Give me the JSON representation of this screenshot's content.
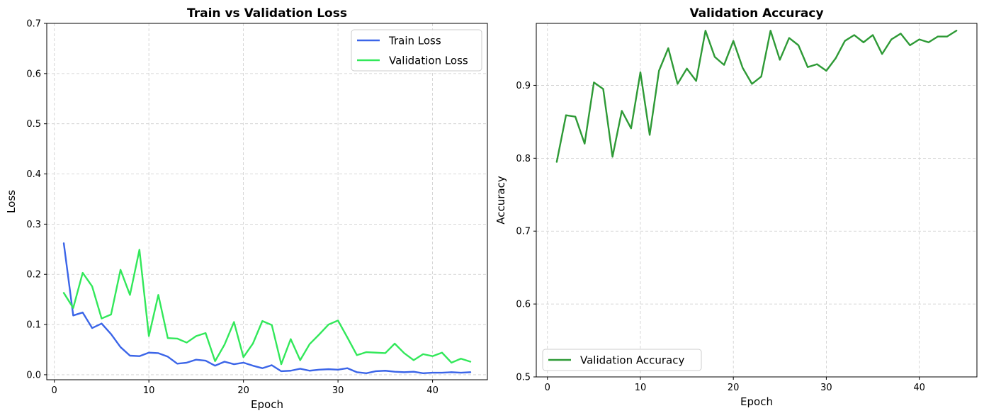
{
  "chart_data": [
    {
      "type": "line",
      "title": "Train vs Validation Loss",
      "xlabel": "Epoch",
      "ylabel": "Loss",
      "xlim": [
        -0.8,
        45.8
      ],
      "ylim": [
        -0.01,
        0.7
      ],
      "xticks": [
        0,
        10,
        20,
        30,
        40
      ],
      "yticks": [
        0.0,
        0.1,
        0.2,
        0.3,
        0.4,
        0.5,
        0.6,
        0.7
      ],
      "ytick_decimals": 1,
      "grid": true,
      "legend": "top-right",
      "x": [
        1,
        2,
        3,
        4,
        5,
        6,
        7,
        8,
        9,
        10,
        11,
        12,
        13,
        14,
        15,
        16,
        17,
        18,
        19,
        20,
        21,
        22,
        23,
        24,
        25,
        26,
        27,
        28,
        29,
        30,
        31,
        32,
        33,
        34,
        35,
        36,
        37,
        38,
        39,
        40,
        41,
        42,
        43,
        44
      ],
      "series": [
        {
          "name": "Train Loss",
          "color": "#3b65e8",
          "values": [
            0.262,
            0.118,
            0.124,
            0.093,
            0.102,
            0.081,
            0.055,
            0.038,
            0.037,
            0.044,
            0.043,
            0.036,
            0.022,
            0.024,
            0.03,
            0.028,
            0.018,
            0.026,
            0.021,
            0.024,
            0.018,
            0.013,
            0.019,
            0.007,
            0.008,
            0.012,
            0.008,
            0.01,
            0.011,
            0.01,
            0.013,
            0.005,
            0.003,
            0.007,
            0.008,
            0.006,
            0.005,
            0.006,
            0.003,
            0.004,
            0.004,
            0.005,
            0.004,
            0.005
          ]
        },
        {
          "name": "Validation Loss",
          "color": "#32e85a",
          "values": [
            0.163,
            0.133,
            0.203,
            0.176,
            0.112,
            0.12,
            0.209,
            0.159,
            0.249,
            0.077,
            0.159,
            0.073,
            0.072,
            0.064,
            0.077,
            0.083,
            0.027,
            0.06,
            0.105,
            0.035,
            0.062,
            0.107,
            0.099,
            0.021,
            0.071,
            0.029,
            0.061,
            0.08,
            0.1,
            0.108,
            0.074,
            0.039,
            0.045,
            0.044,
            0.043,
            0.062,
            0.043,
            0.029,
            0.041,
            0.037,
            0.044,
            0.024,
            0.032,
            0.026
          ]
        }
      ]
    },
    {
      "type": "line",
      "title": "Validation Accuracy",
      "xlabel": "Epoch",
      "ylabel": "Accuracy",
      "xlim": [
        -1.2,
        46.2
      ],
      "ylim": [
        0.5,
        0.985
      ],
      "xticks": [
        0,
        10,
        20,
        30,
        40
      ],
      "yticks": [
        0.5,
        0.6,
        0.7,
        0.8,
        0.9
      ],
      "ytick_decimals": 1,
      "grid": true,
      "legend": "bottom-left",
      "x": [
        1,
        2,
        3,
        4,
        5,
        6,
        7,
        8,
        9,
        10,
        11,
        12,
        13,
        14,
        15,
        16,
        17,
        18,
        19,
        20,
        21,
        22,
        23,
        24,
        25,
        26,
        27,
        28,
        29,
        30,
        31,
        32,
        33,
        34,
        35,
        36,
        37,
        38,
        39,
        40,
        41,
        42,
        43,
        44
      ],
      "series": [
        {
          "name": "Validation Accuracy",
          "color": "#2e9a36",
          "values": [
            0.795,
            0.859,
            0.857,
            0.82,
            0.904,
            0.895,
            0.802,
            0.865,
            0.841,
            0.918,
            0.832,
            0.92,
            0.951,
            0.902,
            0.923,
            0.906,
            0.975,
            0.939,
            0.928,
            0.961,
            0.924,
            0.902,
            0.912,
            0.975,
            0.935,
            0.965,
            0.955,
            0.925,
            0.929,
            0.92,
            0.937,
            0.961,
            0.969,
            0.959,
            0.969,
            0.943,
            0.963,
            0.971,
            0.955,
            0.963,
            0.959,
            0.967,
            0.967,
            0.975
          ]
        }
      ]
    }
  ]
}
